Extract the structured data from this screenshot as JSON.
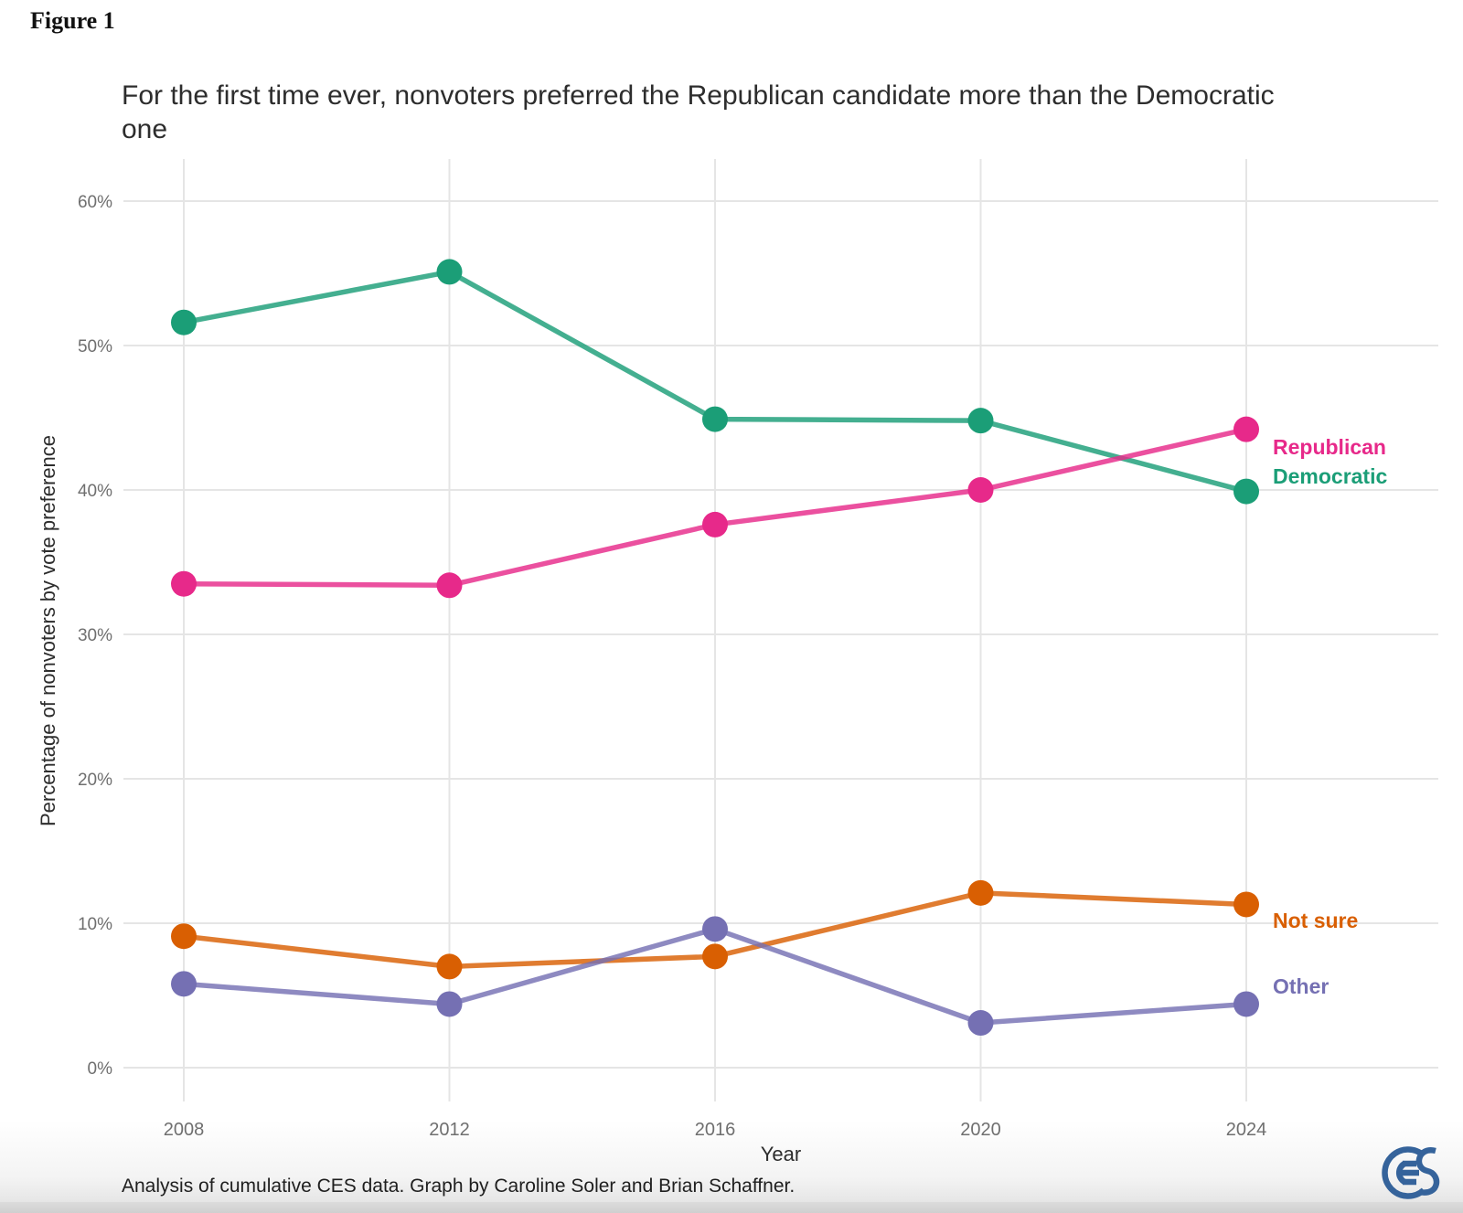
{
  "figure_label": "Figure 1",
  "caption": "Analysis of cumulative CES data. Graph by Caroline Soler and Brian Schaffner.",
  "logo": {
    "name": "ces-logo",
    "color": "#35639B"
  },
  "colors": {
    "republican": "#E7298A",
    "democratic": "#1B9E77",
    "not_sure": "#D95F02",
    "other": "#7570B3",
    "gridline": "#e5e5e5",
    "tick_text": "#6f6f6f",
    "axis_title_text": "#2d2d2d"
  },
  "chart_data": {
    "type": "line",
    "title": "For the first time ever, nonvoters preferred the Republican candidate more than the Democratic one",
    "xlabel": "Year",
    "ylabel": "Percentage of nonvoters by vote preference",
    "x": [
      2008,
      2012,
      2016,
      2020,
      2024
    ],
    "x_tick_labels": [
      "2008",
      "2012",
      "2016",
      "2020",
      "2024"
    ],
    "y_ticks": [
      0,
      10,
      20,
      30,
      40,
      50,
      60
    ],
    "y_tick_labels": [
      "0%",
      "10%",
      "20%",
      "30%",
      "40%",
      "50%",
      "60%"
    ],
    "ylim": [
      0,
      63
    ],
    "grid": true,
    "legend_position": "direct-labels-right",
    "series": [
      {
        "name": "Republican",
        "color": "#E7298A",
        "values": [
          33.5,
          33.4,
          37.6,
          40.0,
          44.2
        ]
      },
      {
        "name": "Democratic",
        "color": "#1B9E77",
        "values": [
          51.6,
          55.1,
          44.9,
          44.8,
          39.9
        ]
      },
      {
        "name": "Not sure",
        "color": "#D95F02",
        "values": [
          9.1,
          7.0,
          7.7,
          12.1,
          11.3
        ]
      },
      {
        "name": "Other",
        "color": "#7570B3",
        "values": [
          5.8,
          4.4,
          9.6,
          3.1,
          4.4
        ]
      }
    ]
  }
}
